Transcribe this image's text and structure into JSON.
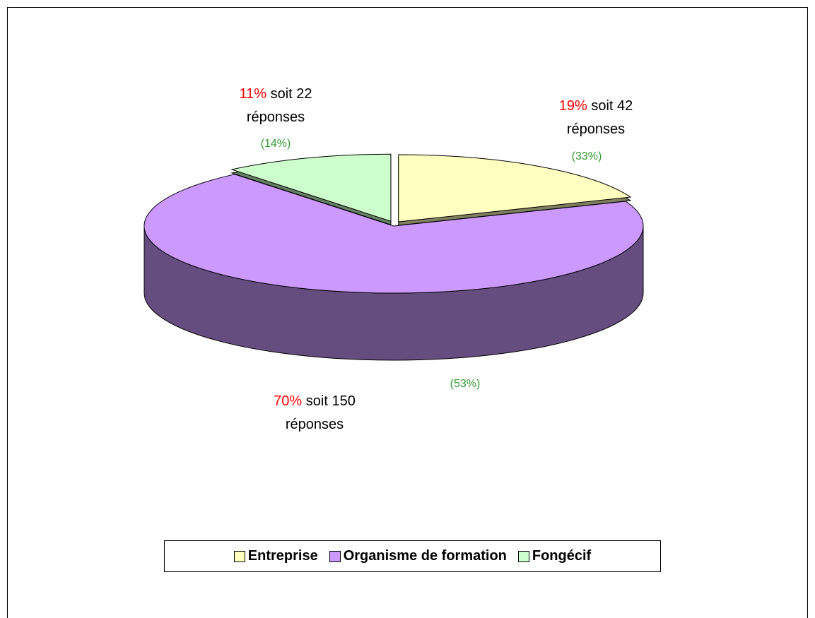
{
  "chart_data": {
    "type": "pie3d",
    "categories": [
      "Entreprise",
      "Organisme de formation",
      "Fongécif"
    ],
    "values": [
      19,
      70,
      11
    ],
    "value_labels": [
      "19%",
      "70%",
      "11%"
    ],
    "count_labels": [
      "soit 42 réponses",
      "soit 150 réponses",
      "soit 22 réponses"
    ],
    "secondary_labels": [
      "(33%)",
      "(53%)",
      "(14%)"
    ],
    "colors": [
      "#FFFFC0",
      "#CC99FF",
      "#CCFFCC"
    ],
    "legend": "bottom"
  }
}
